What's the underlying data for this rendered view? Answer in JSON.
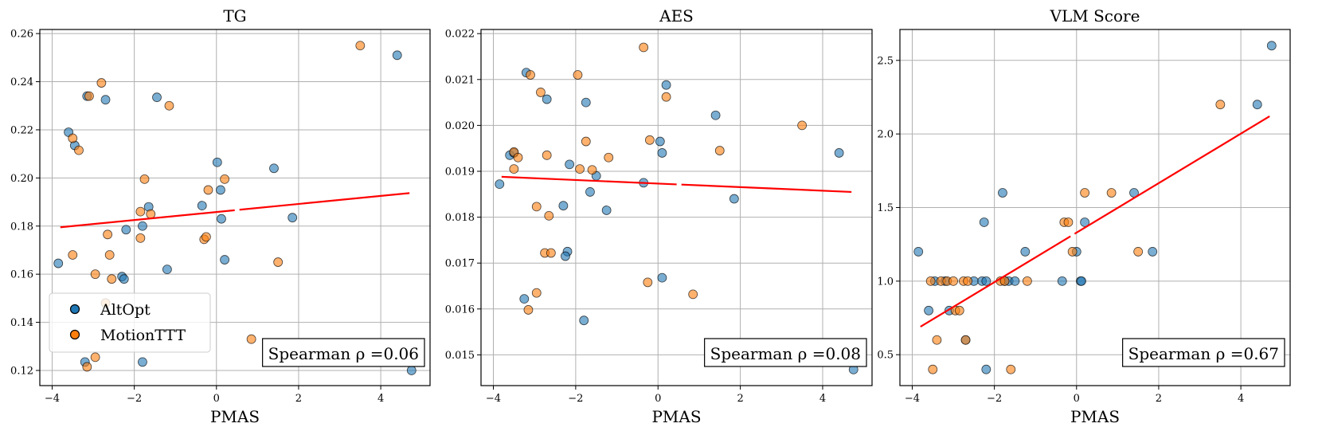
{
  "colors": {
    "AltOpt": "#1f77b4",
    "MotionTTT": "#ff7f0e",
    "fit_line": "#ff0000"
  },
  "legend": [
    {
      "name": "AltOpt",
      "color": "#1f77b4"
    },
    {
      "name": "MotionTTT",
      "color": "#ff7f0e"
    }
  ],
  "chart_data": [
    {
      "type": "scatter",
      "title": "TG",
      "xlabel": "PMAS",
      "ylabel": "",
      "xlim": [
        -4.3,
        5.2
      ],
      "ylim": [
        0.1137,
        0.2617
      ],
      "xticks": [
        -4,
        -2,
        0,
        2,
        4
      ],
      "yticks": [
        0.12,
        0.14,
        0.16,
        0.18,
        0.2,
        0.22,
        0.24,
        0.26
      ],
      "ytick_labels": [
        "0.12",
        "0.14",
        "0.16",
        "0.18",
        "0.20",
        "0.22",
        "0.24",
        "0.26"
      ],
      "annotation": "Spearman ρ =0.06",
      "annotation_position": "bottom-right",
      "show_legend": true,
      "legend_position": "bottom-left",
      "fit": {
        "x": [
          -3.8,
          4.7
        ],
        "y": [
          0.1795,
          0.1937
        ]
      },
      "series": [
        {
          "name": "AltOpt",
          "points": [
            [
              -3.85,
              0.1645
            ],
            [
              -3.6,
              0.219
            ],
            [
              -3.45,
              0.2135
            ],
            [
              -3.15,
              0.234
            ],
            [
              -2.7,
              0.2325
            ],
            [
              -1.45,
              0.2335
            ],
            [
              -2.3,
              0.159
            ],
            [
              -2.25,
              0.158
            ],
            [
              -2.2,
              0.1785
            ],
            [
              -1.8,
              0.18
            ],
            [
              -1.65,
              0.188
            ],
            [
              -1.2,
              0.162
            ],
            [
              -1.8,
              0.1235
            ],
            [
              -3.2,
              0.1235
            ],
            [
              -0.35,
              0.1885
            ],
            [
              0.02,
              0.2065
            ],
            [
              0.1,
              0.195
            ],
            [
              0.12,
              0.183
            ],
            [
              0.2,
              0.166
            ],
            [
              1.4,
              0.204
            ],
            [
              1.85,
              0.1835
            ],
            [
              4.4,
              0.251
            ],
            [
              4.75,
              0.12
            ]
          ]
        },
        {
          "name": "MotionTTT",
          "points": [
            [
              -3.5,
              0.2165
            ],
            [
              -3.35,
              0.2115
            ],
            [
              -3.1,
              0.234
            ],
            [
              -2.8,
              0.2395
            ],
            [
              -1.15,
              0.23
            ],
            [
              -1.75,
              0.1995
            ],
            [
              -1.85,
              0.186
            ],
            [
              -1.6,
              0.185
            ],
            [
              -1.85,
              0.175
            ],
            [
              -0.3,
              0.1745
            ],
            [
              -0.25,
              0.1755
            ],
            [
              -0.2,
              0.195
            ],
            [
              0.2,
              0.1995
            ],
            [
              -3.5,
              0.168
            ],
            [
              -2.95,
              0.16
            ],
            [
              -2.65,
              0.1765
            ],
            [
              -2.6,
              0.168
            ],
            [
              -2.55,
              0.158
            ],
            [
              -2.7,
              0.148
            ],
            [
              -2.95,
              0.1255
            ],
            [
              -3.15,
              0.1215
            ],
            [
              1.5,
              0.165
            ],
            [
              0.85,
              0.133
            ],
            [
              3.5,
              0.255
            ]
          ]
        }
      ]
    },
    {
      "type": "scatter",
      "title": "AES",
      "xlabel": "PMAS",
      "ylabel": "",
      "xlim": [
        -4.3,
        5.2
      ],
      "ylim": [
        0.01433,
        0.02209
      ],
      "xticks": [
        -4,
        -2,
        0,
        2,
        4
      ],
      "yticks": [
        0.015,
        0.016,
        0.017,
        0.018,
        0.019,
        0.02,
        0.021,
        0.022
      ],
      "ytick_labels": [
        "0.015",
        "0.016",
        "0.017",
        "0.018",
        "0.019",
        "0.020",
        "0.021",
        "0.022"
      ],
      "annotation": "Spearman ρ =0.08",
      "annotation_position": "bottom-right",
      "show_legend": false,
      "fit": {
        "x": [
          -3.8,
          4.7
        ],
        "y": [
          0.01888,
          0.01855
        ]
      },
      "series": [
        {
          "name": "AltOpt",
          "points": [
            [
              -3.85,
              0.01872
            ],
            [
              -3.6,
              0.01935
            ],
            [
              -3.5,
              0.0194
            ],
            [
              -3.2,
              0.02115
            ],
            [
              -2.7,
              0.02057
            ],
            [
              -1.75,
              0.0205
            ],
            [
              -2.15,
              0.01915
            ],
            [
              -1.5,
              0.0189
            ],
            [
              -1.65,
              0.01855
            ],
            [
              -2.3,
              0.01825
            ],
            [
              -1.25,
              0.01815
            ],
            [
              -2.2,
              0.01725
            ],
            [
              -2.25,
              0.01715
            ],
            [
              -3.25,
              0.01622
            ],
            [
              -1.8,
              0.01575
            ],
            [
              -0.35,
              0.01875
            ],
            [
              0.05,
              0.01965
            ],
            [
              0.1,
              0.0194
            ],
            [
              0.2,
              0.02088
            ],
            [
              0.1,
              0.01668
            ],
            [
              1.4,
              0.02022
            ],
            [
              1.85,
              0.0184
            ],
            [
              4.4,
              0.0194
            ],
            [
              4.75,
              0.01468
            ]
          ]
        },
        {
          "name": "MotionTTT",
          "points": [
            [
              -3.5,
              0.01942
            ],
            [
              -3.4,
              0.0193
            ],
            [
              -3.5,
              0.01905
            ],
            [
              -3.1,
              0.0211
            ],
            [
              -2.85,
              0.02072
            ],
            [
              -1.95,
              0.0211
            ],
            [
              -1.75,
              0.01965
            ],
            [
              -2.7,
              0.01935
            ],
            [
              -1.9,
              0.01905
            ],
            [
              -1.6,
              0.01903
            ],
            [
              -1.2,
              0.0193
            ],
            [
              -2.95,
              0.01823
            ],
            [
              -2.65,
              0.01803
            ],
            [
              -2.75,
              0.01722
            ],
            [
              -2.6,
              0.01722
            ],
            [
              -2.95,
              0.01635
            ],
            [
              -3.15,
              0.01598
            ],
            [
              -0.35,
              0.0217
            ],
            [
              -0.2,
              0.01968
            ],
            [
              0.2,
              0.02062
            ],
            [
              -0.25,
              0.01658
            ],
            [
              0.85,
              0.01632
            ],
            [
              1.5,
              0.01945
            ],
            [
              3.5,
              0.02
            ]
          ]
        }
      ]
    },
    {
      "type": "scatter",
      "title": "VLM Score",
      "xlabel": "PMAS",
      "ylabel": "",
      "xlim": [
        -4.3,
        5.2
      ],
      "ylim": [
        0.29,
        2.71
      ],
      "xticks": [
        -4,
        -2,
        0,
        2,
        4
      ],
      "yticks": [
        0.5,
        1.0,
        1.5,
        2.0,
        2.5
      ],
      "ytick_labels": [
        "0.5",
        "1.0",
        "1.5",
        "2.0",
        "2.5"
      ],
      "annotation": "Spearman ρ =0.67",
      "annotation_position": "bottom-right",
      "show_legend": false,
      "fit": {
        "x": [
          -3.8,
          4.7
        ],
        "y": [
          0.69,
          2.12
        ]
      },
      "series": [
        {
          "name": "AltOpt",
          "points": [
            [
              -3.85,
              1.2
            ],
            [
              -3.6,
              0.8
            ],
            [
              -3.45,
              1.0
            ],
            [
              -3.2,
              1.0
            ],
            [
              -3.1,
              0.8
            ],
            [
              -2.7,
              0.6
            ],
            [
              -2.5,
              1.0
            ],
            [
              -2.3,
              1.0
            ],
            [
              -2.25,
              1.4
            ],
            [
              -2.2,
              1.0
            ],
            [
              -2.2,
              0.4
            ],
            [
              -1.8,
              1.6
            ],
            [
              -1.75,
              1.0
            ],
            [
              -1.65,
              1.0
            ],
            [
              -1.5,
              1.0
            ],
            [
              -1.25,
              1.2
            ],
            [
              -0.35,
              1.0
            ],
            [
              0.0,
              1.2
            ],
            [
              0.1,
              1.0
            ],
            [
              0.12,
              1.0
            ],
            [
              0.2,
              1.4
            ],
            [
              1.4,
              1.6
            ],
            [
              1.85,
              1.2
            ],
            [
              4.4,
              2.2
            ],
            [
              4.75,
              2.6
            ]
          ]
        },
        {
          "name": "MotionTTT",
          "points": [
            [
              -3.55,
              1.0
            ],
            [
              -3.5,
              0.4
            ],
            [
              -3.4,
              0.6
            ],
            [
              -3.3,
              1.0
            ],
            [
              -3.15,
              1.0
            ],
            [
              -3.0,
              1.0
            ],
            [
              -2.95,
              0.8
            ],
            [
              -2.85,
              0.8
            ],
            [
              -2.75,
              1.0
            ],
            [
              -2.65,
              1.0
            ],
            [
              -2.7,
              0.6
            ],
            [
              -1.85,
              1.0
            ],
            [
              -1.75,
              1.0
            ],
            [
              -1.6,
              0.4
            ],
            [
              -1.2,
              1.0
            ],
            [
              -0.3,
              1.4
            ],
            [
              -0.2,
              1.4
            ],
            [
              -0.1,
              1.2
            ],
            [
              0.2,
              1.6
            ],
            [
              0.85,
              1.6
            ],
            [
              1.5,
              1.2
            ],
            [
              3.5,
              2.2
            ]
          ]
        }
      ]
    }
  ]
}
